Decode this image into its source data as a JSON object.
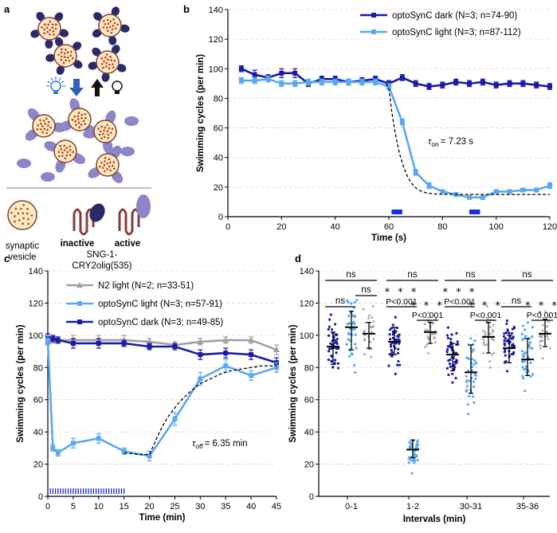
{
  "colors": {
    "dark": "#1a1aa6",
    "light": "#5aa8f0",
    "n2": "#a0a0a0",
    "fit": "#000000",
    "stim": "#1530e0",
    "vesicle_fill": "#f6ecc0",
    "dot": "#cc3322",
    "inactive": "#2a2a6a",
    "active": "#8a86c8",
    "coil": "#8b3a3a"
  },
  "panel_a": {
    "letter": "a",
    "vesicle_label": "synaptic\nvesicle",
    "inactive_label": "inactive",
    "active_label": "active",
    "construct_label": "SNG-1-\nCRY2olig(535)",
    "icons": [
      "light-on-bulb-icon",
      "arrow-down-icon",
      "arrow-up-icon",
      "light-off-bulb-icon"
    ]
  },
  "chart_data": [
    {
      "panel": "b",
      "type": "line",
      "xlabel": "Time (s)",
      "ylabel": "Swimming cycles (per min)",
      "xlim": [
        0,
        120
      ],
      "ylim": [
        0,
        140
      ],
      "xticks": [
        0,
        20,
        40,
        60,
        80,
        100,
        120
      ],
      "yticks": [
        0,
        20,
        40,
        60,
        80,
        100,
        120,
        140
      ],
      "grid": "horizontal dashed",
      "legend": "top-right",
      "series": [
        {
          "name": "optoSynC dark (N=3; n=74-90)",
          "color_key": "dark",
          "x": [
            5,
            10,
            15,
            20,
            25,
            30,
            35,
            40,
            45,
            50,
            55,
            60,
            65,
            70,
            75,
            80,
            85,
            90,
            95,
            100,
            105,
            110,
            115,
            120
          ],
          "y": [
            100,
            96,
            94,
            97,
            97,
            90,
            93,
            93,
            91,
            92,
            93,
            90,
            94,
            90,
            88,
            89,
            91,
            90,
            91,
            89,
            90,
            90,
            89,
            88
          ],
          "err": [
            2,
            3,
            2,
            3,
            3,
            2,
            2,
            2,
            2,
            2,
            2,
            2,
            2,
            2,
            2,
            2,
            2,
            2,
            2,
            2,
            2,
            2,
            2,
            2
          ]
        },
        {
          "name": "optoSynC light (N=3; n=87-112)",
          "color_key": "light",
          "x": [
            5,
            10,
            15,
            20,
            25,
            30,
            35,
            40,
            45,
            50,
            55,
            60,
            65,
            70,
            75,
            80,
            85,
            90,
            95,
            100,
            105,
            110,
            115,
            120
          ],
          "y": [
            92,
            92,
            93,
            90,
            90,
            91,
            91,
            91,
            91,
            91,
            91,
            88,
            64,
            30,
            21,
            17,
            15,
            13,
            13,
            17,
            17,
            18,
            18,
            21
          ],
          "err": [
            2,
            2,
            2,
            2,
            2,
            2,
            2,
            2,
            2,
            2,
            2,
            2,
            2,
            2,
            2,
            1,
            1,
            1,
            1,
            1,
            1,
            1,
            1,
            2
          ]
        }
      ],
      "fit": {
        "label_prefix": "τ",
        "label_sub": "on",
        "label_value": "= 7.23 s",
        "x": [
          59,
          60,
          61,
          62,
          63,
          64,
          65,
          66,
          67,
          68,
          69,
          70,
          72,
          74,
          76,
          78,
          80,
          84,
          88,
          92,
          96,
          100,
          105,
          110,
          115,
          120
        ],
        "y": [
          90,
          86.3,
          72.1,
          60.5,
          50.8,
          42.6,
          36.4,
          31.2,
          27.1,
          23.8,
          21.4,
          19.5,
          17.3,
          16.1,
          15.6,
          15.3,
          15.2,
          15.1,
          15.0,
          15.0,
          15.0,
          15.0,
          15.0,
          15.0,
          15.0,
          15.0
        ]
      },
      "stimuli": [
        [
          61,
          65
        ],
        [
          90,
          94
        ]
      ]
    },
    {
      "panel": "c",
      "type": "line",
      "xlabel": "Time (min)",
      "ylabel": "Swimming cycles (per min)",
      "xlim": [
        0,
        45
      ],
      "ylim": [
        0,
        140
      ],
      "xticks": [
        0,
        5,
        10,
        15,
        20,
        25,
        30,
        35,
        40,
        45
      ],
      "yticks": [
        0,
        20,
        40,
        60,
        80,
        100,
        120,
        140
      ],
      "grid": "horizontal dashed",
      "legend": "top-right",
      "series": [
        {
          "name": "N2 light (N=2; n=33-51)",
          "color_key": "n2",
          "x": [
            0,
            1,
            2,
            5,
            10,
            15,
            20,
            25,
            30,
            35,
            40,
            45
          ],
          "y": [
            97,
            97,
            97,
            97,
            97,
            97,
            96,
            94,
            96,
            97,
            97,
            91
          ],
          "err": [
            3,
            2,
            2,
            3,
            3,
            3,
            2,
            2,
            2,
            2,
            2,
            3
          ]
        },
        {
          "name": "optoSynC light (N=3; n=57-91)",
          "color_key": "light",
          "x": [
            0,
            1,
            2,
            5,
            10,
            15,
            20,
            25,
            30,
            35,
            40,
            45
          ],
          "y": [
            97,
            30,
            27,
            33,
            36,
            28,
            25,
            48,
            73,
            81,
            75,
            80
          ],
          "err": [
            3,
            2,
            2,
            3,
            3,
            2,
            3,
            4,
            4,
            4,
            3,
            3
          ]
        },
        {
          "name": "optoSynC dark (N=3; n=49-85)",
          "color_key": "dark",
          "x": [
            0,
            1,
            2,
            5,
            10,
            15,
            20,
            25,
            30,
            35,
            40,
            45
          ],
          "y": [
            98,
            98,
            97,
            95,
            95,
            95,
            93,
            93,
            88,
            89,
            88,
            83
          ],
          "err": [
            3,
            2,
            2,
            3,
            3,
            2,
            2,
            2,
            3,
            3,
            3,
            3
          ]
        }
      ],
      "fit": {
        "label_prefix": "τ",
        "label_sub": "off",
        "label_value": "= 6.35 min",
        "x": [
          15,
          18,
          20,
          21,
          22,
          23,
          24,
          25,
          26,
          27,
          28,
          30,
          32,
          34,
          36,
          38,
          40,
          42,
          45
        ],
        "y": [
          27,
          26,
          26,
          33,
          40,
          46,
          51,
          55,
          59,
          62,
          65,
          70,
          73,
          76,
          78,
          79,
          80,
          81,
          81
        ]
      },
      "stimulus_range": [
        0.5,
        15
      ]
    },
    {
      "panel": "d",
      "type": "scatter",
      "xlabel": "Intervals (min)",
      "ylabel": "Swimming cycles (per min)",
      "ylim": [
        0,
        140
      ],
      "yticks": [
        0,
        20,
        40,
        60,
        80,
        100,
        120,
        140
      ],
      "grid": "horizontal dashed",
      "categories": [
        "0-1",
        "1-2",
        "30-31",
        "35-36"
      ],
      "series": [
        {
          "name": "optoSynC dark",
          "color_key": "dark",
          "medians": [
            93,
            96,
            88,
            92
          ],
          "q1": [
            82,
            88,
            78,
            83
          ],
          "q3": [
            102,
            105,
            95,
            100
          ],
          "n": 44
        },
        {
          "name": "optoSynC light",
          "color_key": "light",
          "medians": [
            105,
            29,
            77,
            85
          ],
          "q1": [
            91,
            24,
            64,
            75
          ],
          "q3": [
            115,
            35,
            94,
            98
          ],
          "n": 40
        },
        {
          "name": "N2 light",
          "color_key": "n2",
          "medians": [
            101,
            102,
            99,
            101
          ],
          "q1": [
            92,
            95,
            89,
            93
          ],
          "q3": [
            108,
            108,
            108,
            110
          ],
          "n": 26
        }
      ],
      "significance": [
        {
          "group": 0,
          "pair": "outer",
          "text": "ns"
        },
        {
          "group": 0,
          "pair": "lower-left",
          "text": "ns"
        },
        {
          "group": 0,
          "pair": "lower-right",
          "text": "ns"
        },
        {
          "group": 1,
          "pair": "outer",
          "text": "ns"
        },
        {
          "group": 1,
          "pair": "lower-left",
          "text": "* * *",
          "p": "P<0.001"
        },
        {
          "group": 1,
          "pair": "lower-right",
          "text": "* * *",
          "p": "P<0.001"
        },
        {
          "group": 2,
          "pair": "outer",
          "text": "ns"
        },
        {
          "group": 2,
          "pair": "lower-left",
          "text": "* * *",
          "p": "P<0.001"
        },
        {
          "group": 2,
          "pair": "lower-right",
          "text": "* * *",
          "p": "P<0.001"
        },
        {
          "group": 3,
          "pair": "outer",
          "text": "ns"
        },
        {
          "group": 3,
          "pair": "lower-left",
          "text": "ns"
        },
        {
          "group": 3,
          "pair": "lower-right",
          "text": "* * *",
          "p": "P<0.001"
        }
      ]
    }
  ]
}
